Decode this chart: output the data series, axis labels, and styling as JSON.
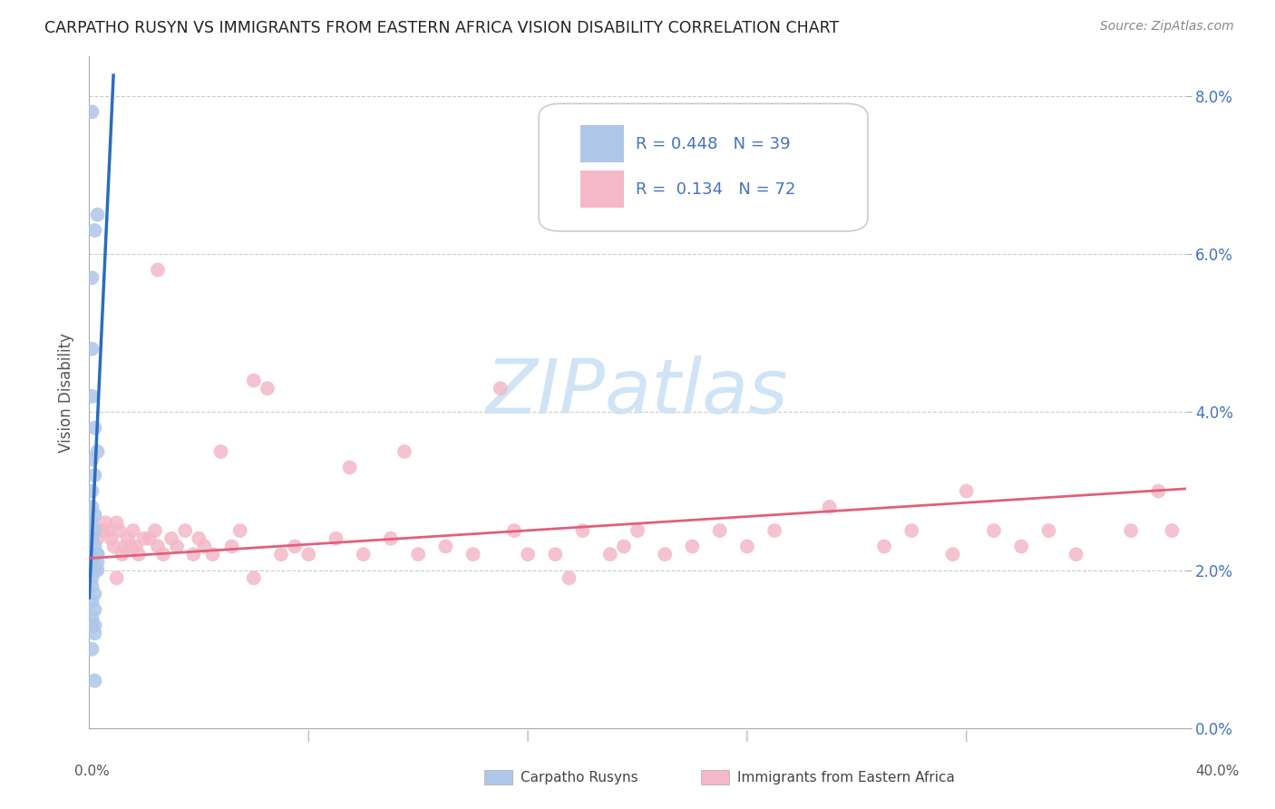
{
  "title": "CARPATHO RUSYN VS IMMIGRANTS FROM EASTERN AFRICA VISION DISABILITY CORRELATION CHART",
  "source": "Source: ZipAtlas.com",
  "ylabel": "Vision Disability",
  "xlim": [
    0,
    0.4
  ],
  "ylim": [
    0.0,
    0.085
  ],
  "yticks": [
    0.0,
    0.02,
    0.04,
    0.06,
    0.08
  ],
  "ytick_labels": [
    "0.0%",
    "2.0%",
    "4.0%",
    "6.0%",
    "8.0%"
  ],
  "xticks": [
    0.0,
    0.08,
    0.16,
    0.24,
    0.32,
    0.4
  ],
  "R_blue": "0.448",
  "N_blue": "39",
  "R_pink": "0.134",
  "N_pink": "72",
  "blue_color": "#aec6e8",
  "pink_color": "#f4b8c8",
  "blue_line_color": "#2b6cbf",
  "pink_line_color": "#e0607a",
  "text_color": "#4472c4",
  "watermark_color": "#d0e4f5",
  "blue_scatter_x": [
    0.001,
    0.001,
    0.002,
    0.001,
    0.001,
    0.002,
    0.001,
    0.002,
    0.001,
    0.003,
    0.001,
    0.002,
    0.001,
    0.002,
    0.001,
    0.003,
    0.002,
    0.001,
    0.002,
    0.003,
    0.001,
    0.002,
    0.001,
    0.002,
    0.001,
    0.002,
    0.003,
    0.001,
    0.002,
    0.003,
    0.001,
    0.002,
    0.001,
    0.002,
    0.001,
    0.002,
    0.001,
    0.003,
    0.002
  ],
  "blue_scatter_y": [
    0.078,
    0.057,
    0.063,
    0.048,
    0.042,
    0.038,
    0.034,
    0.032,
    0.03,
    0.065,
    0.028,
    0.027,
    0.026,
    0.025,
    0.024,
    0.035,
    0.023,
    0.022,
    0.022,
    0.021,
    0.021,
    0.022,
    0.02,
    0.02,
    0.019,
    0.022,
    0.02,
    0.018,
    0.017,
    0.022,
    0.016,
    0.015,
    0.014,
    0.013,
    0.013,
    0.012,
    0.01,
    0.022,
    0.006
  ],
  "pink_scatter_x": [
    0.003,
    0.005,
    0.006,
    0.007,
    0.008,
    0.009,
    0.01,
    0.011,
    0.012,
    0.013,
    0.014,
    0.015,
    0.016,
    0.017,
    0.018,
    0.02,
    0.022,
    0.024,
    0.025,
    0.027,
    0.03,
    0.032,
    0.035,
    0.038,
    0.04,
    0.042,
    0.045,
    0.048,
    0.052,
    0.055,
    0.06,
    0.065,
    0.07,
    0.075,
    0.08,
    0.09,
    0.095,
    0.1,
    0.11,
    0.115,
    0.12,
    0.13,
    0.14,
    0.15,
    0.155,
    0.16,
    0.17,
    0.175,
    0.18,
    0.19,
    0.195,
    0.2,
    0.21,
    0.22,
    0.23,
    0.24,
    0.25,
    0.27,
    0.29,
    0.3,
    0.315,
    0.32,
    0.33,
    0.34,
    0.35,
    0.36,
    0.38,
    0.39,
    0.395,
    0.01,
    0.025,
    0.06
  ],
  "pink_scatter_y": [
    0.024,
    0.025,
    0.026,
    0.025,
    0.024,
    0.023,
    0.026,
    0.025,
    0.022,
    0.023,
    0.024,
    0.023,
    0.025,
    0.023,
    0.022,
    0.024,
    0.024,
    0.025,
    0.023,
    0.022,
    0.024,
    0.023,
    0.025,
    0.022,
    0.024,
    0.023,
    0.022,
    0.035,
    0.023,
    0.025,
    0.044,
    0.043,
    0.022,
    0.023,
    0.022,
    0.024,
    0.033,
    0.022,
    0.024,
    0.035,
    0.022,
    0.023,
    0.022,
    0.043,
    0.025,
    0.022,
    0.022,
    0.019,
    0.025,
    0.022,
    0.023,
    0.025,
    0.022,
    0.023,
    0.025,
    0.023,
    0.025,
    0.028,
    0.023,
    0.025,
    0.022,
    0.03,
    0.025,
    0.023,
    0.025,
    0.022,
    0.025,
    0.03,
    0.025,
    0.019,
    0.058,
    0.019
  ],
  "b_slope": 7.5,
  "b_intercept": 0.0165,
  "p_slope": 0.022,
  "p_intercept": 0.0215
}
